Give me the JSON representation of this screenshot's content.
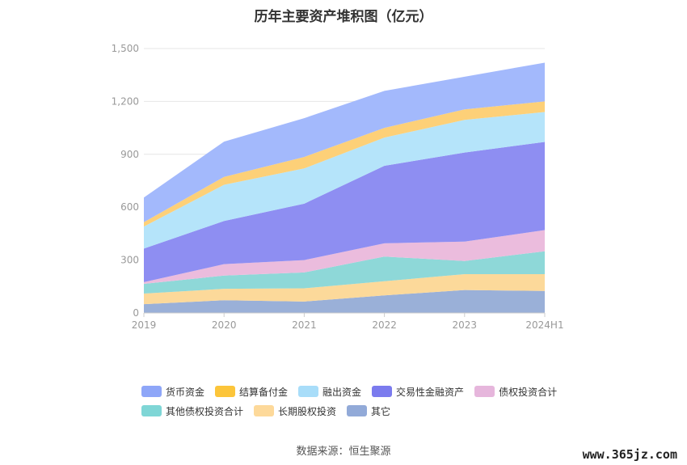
{
  "chart_data": {
    "type": "area",
    "title": "历年主要资产堆积图（亿元）",
    "categories": [
      "2019",
      "2020",
      "2021",
      "2022",
      "2023",
      "2024H1"
    ],
    "ylim": [
      0,
      1500
    ],
    "yticks": [
      "0",
      "300",
      "600",
      "900",
      "1,200",
      "1,500"
    ],
    "grid": true,
    "legend_position": "bottom",
    "series": [
      {
        "name": "其它",
        "color": "#9ab0d8",
        "values": [
          50,
          72,
          65,
          100,
          130,
          125
        ]
      },
      {
        "name": "长期股权投资",
        "color": "#fcd99a",
        "values": [
          60,
          65,
          75,
          80,
          90,
          95
        ]
      },
      {
        "name": "其他债权投资合计",
        "color": "#8ed8d8",
        "values": [
          55,
          75,
          90,
          140,
          75,
          130
        ]
      },
      {
        "name": "债权投资合计",
        "color": "#ebbcdd",
        "values": [
          10,
          65,
          70,
          75,
          110,
          120
        ]
      },
      {
        "name": "交易性金融资产",
        "color": "#8e8ef2",
        "values": [
          190,
          245,
          320,
          440,
          505,
          500
        ]
      },
      {
        "name": "融出资金",
        "color": "#b5e4fa",
        "values": [
          125,
          205,
          200,
          160,
          185,
          170
        ]
      },
      {
        "name": "结算备付金",
        "color": "#fdd078",
        "values": [
          25,
          45,
          65,
          55,
          60,
          60
        ]
      },
      {
        "name": "货币资金",
        "color": "#a3b9fc",
        "values": [
          140,
          200,
          220,
          210,
          185,
          220
        ]
      }
    ],
    "legend_colors": {
      "货币资金": "#8ea6f8",
      "结算备付金": "#fcc53a",
      "融出资金": "#a8ddf9",
      "交易性金融资产": "#7b7bee",
      "债权投资合计": "#e6b6dc",
      "其他债权投资合计": "#7fd6d6",
      "长期股权投资": "#fdd99a",
      "其它": "#92aad8"
    }
  },
  "legend": {
    "row1": [
      "货币资金",
      "结算备付金",
      "融出资金",
      "交易性金融资产",
      "债权投资合计"
    ],
    "row2": [
      "其他债权投资合计",
      "长期股权投资",
      "其它"
    ]
  },
  "source": "数据来源：恒生聚源",
  "watermark": "www.365jz.com"
}
